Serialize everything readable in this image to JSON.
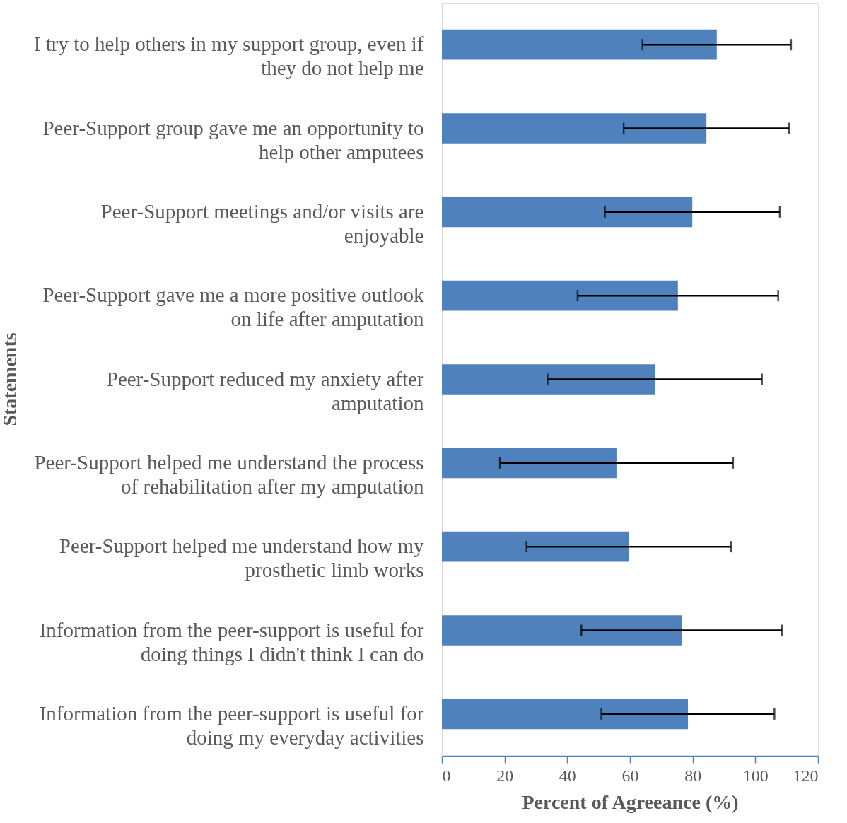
{
  "chart_data": {
    "type": "bar",
    "orientation": "horizontal",
    "xlabel": "Percent of Agreeance (%)",
    "ylabel": "Statements",
    "categories": [
      "I try to help others in my support group, even if\nthey do not help me",
      "Peer-Support group gave me an opportunity to\nhelp other amputees",
      "Peer-Support meetings and/or visits are\nenjoyable",
      "Peer-Support gave me a more positive outlook\non life after amputation",
      "Peer-Support reduced my anxiety after\namputation",
      "Peer-Support helped me understand the process\nof rehabilitation after my amputation",
      "Peer-Support helped me understand how my\nprosthetic limb works",
      "Information from the peer-support is useful for\ndoing things I didn't think I can do",
      "Information from the peer-support is useful for\ndoing my everyday activities"
    ],
    "values": [
      87.7,
      84.4,
      79.9,
      75.3,
      67.9,
      55.7,
      59.6,
      76.5,
      78.5
    ],
    "errors": [
      23.7,
      26.4,
      27.9,
      32,
      34.2,
      37.2,
      32.6,
      32,
      27.6
    ],
    "color": "#4f81bd",
    "xlim": [
      0,
      120
    ],
    "xticks": [
      0,
      20,
      40,
      60,
      80,
      100,
      120
    ],
    "grid": false
  }
}
